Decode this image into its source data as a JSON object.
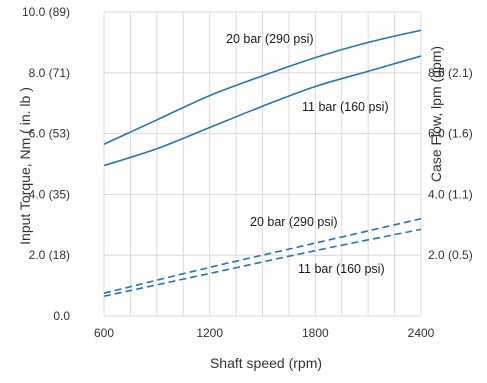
{
  "chart_data": {
    "type": "line",
    "title": "",
    "xlabel": "Shaft speed (rpm)",
    "ylabel": "Input Torque, Nm ( in. lb )",
    "y2label": "Case Flow, lpm (gpm)",
    "xlim": [
      600,
      2400
    ],
    "ylim": [
      0,
      10
    ],
    "y2lim": [
      0,
      10
    ],
    "grid": true,
    "x_ticks": [
      600,
      1200,
      1800,
      2400
    ],
    "x_tick_labels": [
      "600",
      "1200",
      "1800",
      "2400"
    ],
    "y_ticks": [
      0,
      2,
      4,
      6,
      8,
      10
    ],
    "y_tick_labels": [
      "0.0",
      "2.0 (18)",
      "4.0 (35)",
      "6.0 (53)",
      "8.0 (71)",
      "10.0 (89)"
    ],
    "y2_ticks": [
      2,
      4,
      6,
      8
    ],
    "y2_tick_labels": [
      "2.0 (0.5)",
      "4.0 (1.1)",
      "6.0 (1.6)",
      "8.0 (2.1)"
    ],
    "series": [
      {
        "name": "20 bar (290 psi)",
        "axis": "left",
        "style": "solid",
        "color": "#1f78b4",
        "x": [
          600,
          900,
          1200,
          1500,
          1800,
          2100,
          2400
        ],
        "values": [
          5.65,
          6.45,
          7.25,
          7.9,
          8.5,
          9.0,
          9.4
        ]
      },
      {
        "name": "11 bar (160 psi)",
        "axis": "left",
        "style": "solid",
        "color": "#1f78b4",
        "x": [
          600,
          900,
          1200,
          1500,
          1800,
          2100,
          2400
        ],
        "values": [
          4.95,
          5.5,
          6.2,
          6.9,
          7.55,
          8.05,
          8.55
        ]
      },
      {
        "name": "20 bar (290 psi)",
        "axis": "right",
        "style": "dashed",
        "color": "#1f78b4",
        "x": [
          600,
          1200,
          1800,
          2400
        ],
        "values": [
          0.75,
          1.6,
          2.4,
          3.2
        ]
      },
      {
        "name": "11 bar (160 psi)",
        "axis": "right",
        "style": "dashed",
        "color": "#1f78b4",
        "x": [
          600,
          1200,
          1800,
          2400
        ],
        "values": [
          0.65,
          1.4,
          2.15,
          2.85
        ]
      }
    ]
  }
}
